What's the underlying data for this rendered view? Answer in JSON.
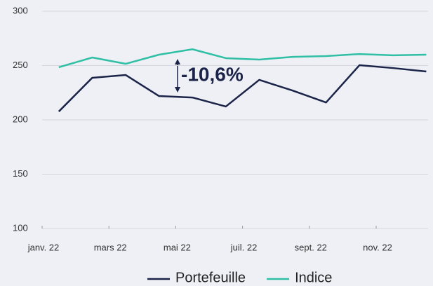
{
  "chart_data": {
    "type": "line",
    "categories": [
      "janv. 22",
      null,
      "mars 22",
      null,
      "mai 22",
      null,
      "juil. 22",
      null,
      "sept. 22",
      null,
      "nov. 22",
      null
    ],
    "series": [
      {
        "name": "Portefeuille",
        "color": "#1b2448",
        "values": [
          207.7,
          238.7,
          241.3,
          221.9,
          220.6,
          212.3,
          236.8,
          227,
          216,
          250.3,
          247.7,
          244.5
        ]
      },
      {
        "name": "Indice",
        "color": "#2fbfa5",
        "values": [
          248.4,
          257.4,
          251.6,
          260,
          265,
          256.8,
          255.5,
          258,
          258.7,
          260.6,
          259.4,
          260
        ]
      }
    ],
    "ylim": [
      100,
      300
    ],
    "yticks": [
      100,
      150,
      200,
      250,
      300
    ],
    "grid": true,
    "annotation": "-10,6%"
  }
}
